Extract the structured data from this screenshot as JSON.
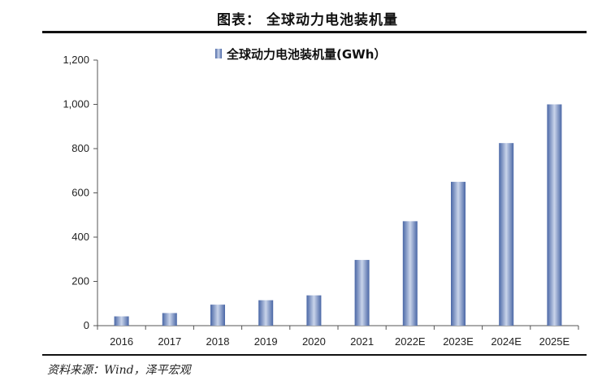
{
  "figure": {
    "title": "图表： 全球动力电池装机量",
    "source": "资料来源：Wind，泽平宏观"
  },
  "colors": {
    "bar_edge": "#4a67a6",
    "bar_center": "#c9d4ea",
    "axis": "#555555",
    "text": "#222222"
  },
  "chart_data": {
    "type": "bar",
    "title": "",
    "categories": [
      "2016",
      "2017",
      "2018",
      "2019",
      "2020",
      "2021",
      "2022E",
      "2023E",
      "2024E",
      "2025E"
    ],
    "series": [
      {
        "name": "全球动力电池装机量(GWh）",
        "values": [
          42,
          57,
          95,
          115,
          137,
          297,
          472,
          650,
          825,
          1000
        ]
      }
    ],
    "ylim": [
      0,
      1200
    ],
    "yticks": [
      0,
      200,
      400,
      600,
      800,
      1000,
      1200
    ],
    "ytick_labels": [
      "0",
      "200",
      "400",
      "600",
      "800",
      "1,000",
      "1,200"
    ],
    "xlabel": "",
    "ylabel": "",
    "grid": false,
    "legend_position": "top-center"
  }
}
